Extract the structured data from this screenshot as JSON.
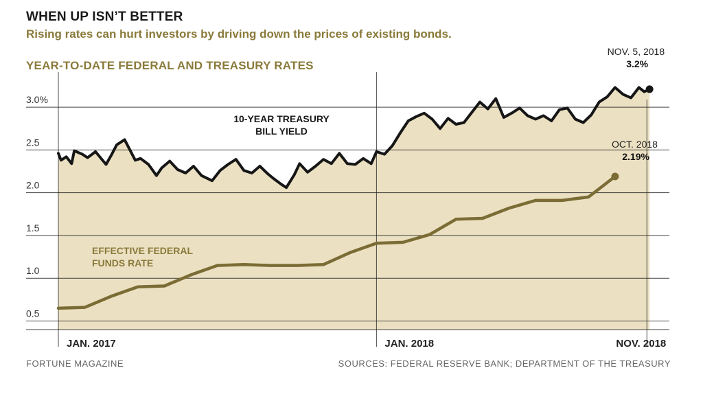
{
  "title": "WHEN UP ISN’T BETTER",
  "subtitle": "Rising rates can hurt investors by driving down the prices of existing bonds.",
  "panel_title": "YEAR-TO-DATE FEDERAL AND TREASURY RATES",
  "footer": {
    "left": "FORTUNE MAGAZINE",
    "right": "SOURCES: FEDERAL RESERVE BANK; DEPARTMENT OF THE TREASURY"
  },
  "colors": {
    "fill": "#ebe0c2",
    "treasury": "#161616",
    "funds": "#7a6c34",
    "grid": "#222222",
    "label_gold": "#8a7a3a"
  },
  "chart_data": {
    "type": "line",
    "title": "YEAR-TO-DATE FEDERAL AND TREASURY RATES",
    "xlabel": "",
    "ylabel": "",
    "xlim": [
      0,
      22.4
    ],
    "ylim": [
      0.4,
      3.45
    ],
    "x_unit": "months since Jan. 2017",
    "yticks": [
      {
        "value": 0.5,
        "label": "0.5"
      },
      {
        "value": 1.0,
        "label": "1.0"
      },
      {
        "value": 1.5,
        "label": "1.5"
      },
      {
        "value": 2.0,
        "label": "2.0"
      },
      {
        "value": 2.5,
        "label": "2.5"
      },
      {
        "value": 3.0,
        "label": "3.0%"
      }
    ],
    "xticks": [
      {
        "value": 0,
        "label": "JAN. 2017"
      },
      {
        "value": 12,
        "label": "JAN. 2018"
      },
      {
        "value": 22.2,
        "label": "NOV. 2018"
      }
    ],
    "series": [
      {
        "name": "10-YEAR TREASURY BILL YIELD",
        "label_lines": [
          "10-YEAR TREASURY",
          "BILL YIELD"
        ],
        "x": [
          0,
          0.1,
          0.3,
          0.5,
          0.6,
          0.9,
          1.1,
          1.4,
          1.8,
          2.0,
          2.2,
          2.5,
          2.9,
          3.1,
          3.4,
          3.7,
          3.9,
          4.2,
          4.5,
          4.8,
          5.1,
          5.4,
          5.8,
          6.1,
          6.4,
          6.7,
          7.0,
          7.3,
          7.6,
          7.9,
          8.1,
          8.4,
          8.6,
          8.9,
          9.1,
          9.4,
          9.7,
          10.0,
          10.3,
          10.6,
          10.9,
          11.2,
          11.5,
          11.8,
          12.0,
          12.3,
          12.6,
          12.9,
          13.2,
          13.5,
          13.8,
          14.1,
          14.4,
          14.7,
          15.0,
          15.3,
          15.6,
          15.9,
          16.2,
          16.5,
          16.8,
          17.1,
          17.4,
          17.7,
          18.0,
          18.3,
          18.6,
          18.9,
          19.2,
          19.5,
          19.8,
          20.1,
          20.4,
          20.7,
          21.0,
          21.3,
          21.6,
          21.9,
          22.1,
          22.3
        ],
        "y": [
          2.46,
          2.38,
          2.42,
          2.34,
          2.49,
          2.45,
          2.41,
          2.48,
          2.33,
          2.44,
          2.56,
          2.62,
          2.38,
          2.4,
          2.33,
          2.2,
          2.29,
          2.37,
          2.27,
          2.23,
          2.31,
          2.2,
          2.14,
          2.26,
          2.33,
          2.39,
          2.26,
          2.23,
          2.31,
          2.22,
          2.17,
          2.1,
          2.06,
          2.21,
          2.34,
          2.24,
          2.31,
          2.39,
          2.34,
          2.46,
          2.34,
          2.33,
          2.4,
          2.34,
          2.48,
          2.45,
          2.55,
          2.7,
          2.84,
          2.89,
          2.93,
          2.86,
          2.75,
          2.87,
          2.8,
          2.82,
          2.94,
          3.06,
          2.98,
          3.1,
          2.88,
          2.93,
          2.99,
          2.9,
          2.86,
          2.9,
          2.84,
          2.97,
          2.99,
          2.86,
          2.82,
          2.91,
          3.06,
          3.12,
          3.23,
          3.15,
          3.11,
          3.23,
          3.18,
          3.21
        ]
      },
      {
        "name": "EFFECTIVE FEDERAL FUNDS RATE",
        "label_lines": [
          "EFFECTIVE FEDERAL",
          "FUNDS RATE"
        ],
        "x": [
          0,
          1,
          2,
          3,
          4,
          5,
          6,
          7,
          8,
          9,
          10,
          11,
          12,
          13,
          14,
          15,
          16,
          17,
          18,
          19,
          20,
          21
        ],
        "y": [
          0.65,
          0.66,
          0.79,
          0.9,
          0.91,
          1.04,
          1.15,
          1.16,
          1.15,
          1.15,
          1.16,
          1.3,
          1.41,
          1.42,
          1.51,
          1.69,
          1.7,
          1.82,
          1.91,
          1.91,
          1.95,
          2.19
        ]
      }
    ],
    "annotations": [
      {
        "series": "10-YEAR TREASURY BILL YIELD",
        "x": 22.3,
        "y": 3.21,
        "date": "NOV. 5, 2018",
        "value": "3.2%"
      },
      {
        "series": "EFFECTIVE FEDERAL FUNDS RATE",
        "x": 21,
        "y": 2.19,
        "date": "OCT. 2018",
        "value": "2.19%"
      }
    ]
  }
}
